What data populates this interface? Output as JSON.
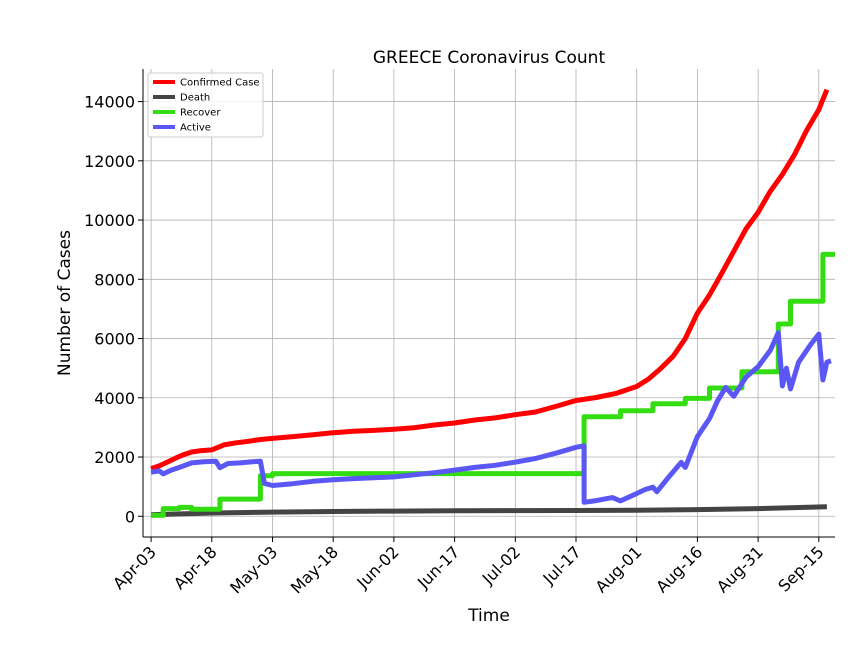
{
  "chart_data": {
    "type": "line",
    "title": "GREECE Coronavirus Count",
    "xlabel": "Time",
    "ylabel": "Number of Cases",
    "x_domain": [
      "2020-04-01",
      "2020-09-19"
    ],
    "ylim": [
      -700,
      15100
    ],
    "grid": true,
    "legend_position": "top-left",
    "x_ticks": [
      {
        "date": "2020-04-03",
        "label": "Apr-03"
      },
      {
        "date": "2020-04-18",
        "label": "Apr-18"
      },
      {
        "date": "2020-05-03",
        "label": "May-03"
      },
      {
        "date": "2020-05-18",
        "label": "May-18"
      },
      {
        "date": "2020-06-02",
        "label": "Jun-02"
      },
      {
        "date": "2020-06-17",
        "label": "Jun-17"
      },
      {
        "date": "2020-07-02",
        "label": "Jul-02"
      },
      {
        "date": "2020-07-17",
        "label": "Jul-17"
      },
      {
        "date": "2020-08-01",
        "label": "Aug-01"
      },
      {
        "date": "2020-08-16",
        "label": "Aug-16"
      },
      {
        "date": "2020-08-31",
        "label": "Aug-31"
      },
      {
        "date": "2020-09-15",
        "label": "Sep-15"
      }
    ],
    "y_ticks": [
      0,
      2000,
      4000,
      6000,
      8000,
      10000,
      12000,
      14000
    ],
    "series": [
      {
        "name": "Confirmed Case",
        "color": "#ff0000",
        "points": [
          [
            "2020-04-03",
            1610
          ],
          [
            "2020-04-05",
            1700
          ],
          [
            "2020-04-07",
            1830
          ],
          [
            "2020-04-09",
            1960
          ],
          [
            "2020-04-11",
            2080
          ],
          [
            "2020-04-13",
            2170
          ],
          [
            "2020-04-15",
            2210
          ],
          [
            "2020-04-18",
            2240
          ],
          [
            "2020-04-21",
            2410
          ],
          [
            "2020-04-24",
            2480
          ],
          [
            "2020-04-27",
            2530
          ],
          [
            "2020-04-30",
            2590
          ],
          [
            "2020-05-03",
            2630
          ],
          [
            "2020-05-08",
            2690
          ],
          [
            "2020-05-13",
            2750
          ],
          [
            "2020-05-18",
            2820
          ],
          [
            "2020-05-23",
            2870
          ],
          [
            "2020-05-28",
            2900
          ],
          [
            "2020-06-02",
            2940
          ],
          [
            "2020-06-07",
            2990
          ],
          [
            "2020-06-12",
            3080
          ],
          [
            "2020-06-17",
            3150
          ],
          [
            "2020-06-22",
            3250
          ],
          [
            "2020-06-27",
            3320
          ],
          [
            "2020-07-02",
            3430
          ],
          [
            "2020-07-07",
            3520
          ],
          [
            "2020-07-12",
            3710
          ],
          [
            "2020-07-17",
            3910
          ],
          [
            "2020-07-22",
            4010
          ],
          [
            "2020-07-27",
            4150
          ],
          [
            "2020-08-01",
            4380
          ],
          [
            "2020-08-04",
            4640
          ],
          [
            "2020-08-07",
            5000
          ],
          [
            "2020-08-10",
            5400
          ],
          [
            "2020-08-13",
            6000
          ],
          [
            "2020-08-16",
            6860
          ],
          [
            "2020-08-19",
            7470
          ],
          [
            "2020-08-22",
            8200
          ],
          [
            "2020-08-25",
            8950
          ],
          [
            "2020-08-28",
            9700
          ],
          [
            "2020-08-31",
            10260
          ],
          [
            "2020-09-03",
            10970
          ],
          [
            "2020-09-06",
            11540
          ],
          [
            "2020-09-09",
            12210
          ],
          [
            "2020-09-12",
            13030
          ],
          [
            "2020-09-15",
            13730
          ],
          [
            "2020-09-17",
            14400
          ]
        ]
      },
      {
        "name": "Death",
        "color": "#444444",
        "points": [
          [
            "2020-04-03",
            50
          ],
          [
            "2020-04-18",
            110
          ],
          [
            "2020-05-03",
            140
          ],
          [
            "2020-05-18",
            160
          ],
          [
            "2020-06-02",
            175
          ],
          [
            "2020-06-17",
            185
          ],
          [
            "2020-07-02",
            190
          ],
          [
            "2020-07-17",
            195
          ],
          [
            "2020-08-01",
            205
          ],
          [
            "2020-08-16",
            225
          ],
          [
            "2020-08-31",
            260
          ],
          [
            "2020-09-17",
            320
          ]
        ]
      },
      {
        "name": "Recover",
        "color": "#33dd11",
        "points": [
          [
            "2020-04-03",
            30
          ],
          [
            "2020-04-06",
            30
          ],
          [
            "2020-04-06",
            260
          ],
          [
            "2020-04-10",
            260
          ],
          [
            "2020-04-10",
            300
          ],
          [
            "2020-04-13",
            300
          ],
          [
            "2020-04-13",
            240
          ],
          [
            "2020-04-20",
            240
          ],
          [
            "2020-04-20",
            580
          ],
          [
            "2020-04-30",
            580
          ],
          [
            "2020-04-30",
            1370
          ],
          [
            "2020-05-03",
            1370
          ],
          [
            "2020-05-03",
            1440
          ],
          [
            "2020-07-19",
            1440
          ],
          [
            "2020-07-19",
            3360
          ],
          [
            "2020-07-28",
            3360
          ],
          [
            "2020-07-28",
            3560
          ],
          [
            "2020-08-05",
            3560
          ],
          [
            "2020-08-05",
            3800
          ],
          [
            "2020-08-13",
            3800
          ],
          [
            "2020-08-13",
            3980
          ],
          [
            "2020-08-19",
            3980
          ],
          [
            "2020-08-19",
            4330
          ],
          [
            "2020-08-27",
            4330
          ],
          [
            "2020-08-27",
            4880
          ],
          [
            "2020-09-05",
            4880
          ],
          [
            "2020-09-05",
            6490
          ],
          [
            "2020-09-08",
            6490
          ],
          [
            "2020-09-08",
            7260
          ],
          [
            "2020-09-16",
            7260
          ],
          [
            "2020-09-16",
            8840
          ],
          [
            "2020-09-19",
            8840
          ]
        ]
      },
      {
        "name": "Active",
        "color": "#5b57f5",
        "points": [
          [
            "2020-04-03",
            1490
          ],
          [
            "2020-04-05",
            1530
          ],
          [
            "2020-04-06",
            1430
          ],
          [
            "2020-04-08",
            1560
          ],
          [
            "2020-04-10",
            1650
          ],
          [
            "2020-04-13",
            1800
          ],
          [
            "2020-04-16",
            1840
          ],
          [
            "2020-04-19",
            1860
          ],
          [
            "2020-04-20",
            1640
          ],
          [
            "2020-04-22",
            1780
          ],
          [
            "2020-04-25",
            1800
          ],
          [
            "2020-04-28",
            1840
          ],
          [
            "2020-04-30",
            1860
          ],
          [
            "2020-05-01",
            1110
          ],
          [
            "2020-05-03",
            1040
          ],
          [
            "2020-05-08",
            1100
          ],
          [
            "2020-05-13",
            1180
          ],
          [
            "2020-05-18",
            1230
          ],
          [
            "2020-05-23",
            1270
          ],
          [
            "2020-05-28",
            1300
          ],
          [
            "2020-06-02",
            1330
          ],
          [
            "2020-06-07",
            1400
          ],
          [
            "2020-06-12",
            1470
          ],
          [
            "2020-06-17",
            1560
          ],
          [
            "2020-06-22",
            1650
          ],
          [
            "2020-06-27",
            1720
          ],
          [
            "2020-07-02",
            1830
          ],
          [
            "2020-07-07",
            1950
          ],
          [
            "2020-07-12",
            2130
          ],
          [
            "2020-07-17",
            2330
          ],
          [
            "2020-07-19",
            2380
          ],
          [
            "2020-07-19",
            470
          ],
          [
            "2020-07-22",
            530
          ],
          [
            "2020-07-26",
            630
          ],
          [
            "2020-07-28",
            520
          ],
          [
            "2020-08-01",
            770
          ],
          [
            "2020-08-03",
            900
          ],
          [
            "2020-08-05",
            980
          ],
          [
            "2020-08-06",
            830
          ],
          [
            "2020-08-09",
            1340
          ],
          [
            "2020-08-12",
            1820
          ],
          [
            "2020-08-13",
            1650
          ],
          [
            "2020-08-16",
            2690
          ],
          [
            "2020-08-19",
            3300
          ],
          [
            "2020-08-21",
            3900
          ],
          [
            "2020-08-23",
            4350
          ],
          [
            "2020-08-25",
            4050
          ],
          [
            "2020-08-28",
            4700
          ],
          [
            "2020-08-31",
            5050
          ],
          [
            "2020-09-03",
            5600
          ],
          [
            "2020-09-05",
            6200
          ],
          [
            "2020-09-06",
            4400
          ],
          [
            "2020-09-07",
            5000
          ],
          [
            "2020-09-08",
            4300
          ],
          [
            "2020-09-10",
            5200
          ],
          [
            "2020-09-13",
            5800
          ],
          [
            "2020-09-15",
            6150
          ],
          [
            "2020-09-16",
            4600
          ],
          [
            "2020-09-17",
            5200
          ],
          [
            "2020-09-18",
            5250
          ]
        ]
      }
    ]
  }
}
